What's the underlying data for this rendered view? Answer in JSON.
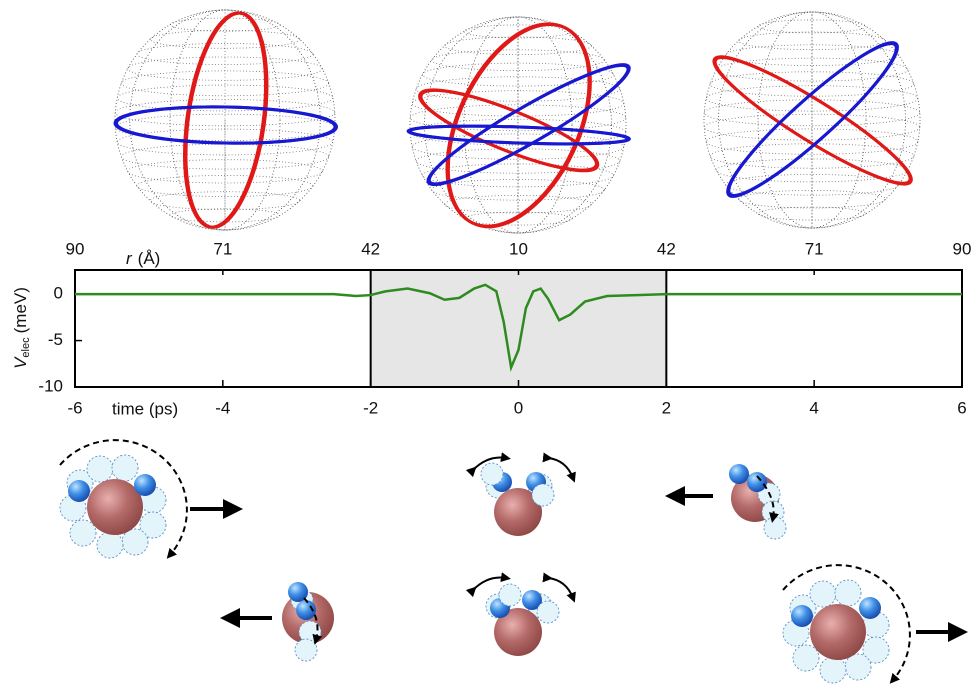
{
  "chart_data": {
    "type": "line",
    "x": [
      -6,
      -5,
      -4,
      -3,
      -2.5,
      -2.2,
      -2,
      -1.8,
      -1.5,
      -1.2,
      -1,
      -0.8,
      -0.6,
      -0.45,
      -0.3,
      -0.2,
      -0.1,
      0,
      0.1,
      0.2,
      0.3,
      0.4,
      0.55,
      0.7,
      0.9,
      1.2,
      1.6,
      2,
      3,
      4,
      5,
      6
    ],
    "values": [
      0,
      0,
      0,
      0,
      0,
      -0.2,
      -0.1,
      0.3,
      0.6,
      0.1,
      -0.6,
      -0.4,
      0.6,
      1.0,
      0.3,
      -3,
      -7.9,
      -6,
      -1.5,
      0.3,
      0.6,
      -0.5,
      -2.8,
      -2.2,
      -0.8,
      -0.2,
      -0.1,
      0,
      0,
      0,
      0,
      0
    ],
    "color": "#2e8b1f",
    "xlabel": "time (ps)",
    "ylabel": {
      "symbol": "V",
      "subscript": "elec",
      "unit": "(meV)"
    },
    "x2label": {
      "symbol": "r",
      "unit": "(Å)"
    },
    "xlim": [
      -6,
      6
    ],
    "ylim": [
      -10,
      2.6
    ],
    "xticks": [
      -6,
      -4,
      -2,
      0,
      2,
      4,
      6
    ],
    "yticks": [
      0,
      -5,
      -10
    ],
    "x2ticks": [
      {
        "value": -6,
        "label": "90"
      },
      {
        "value": -4,
        "label": "71"
      },
      {
        "value": -2,
        "label": "42"
      },
      {
        "value": 0,
        "label": "10"
      },
      {
        "value": 2,
        "label": "42"
      },
      {
        "value": 4,
        "label": "71"
      },
      {
        "value": 6,
        "label": "90"
      }
    ],
    "shaded_region": [
      -2,
      2
    ],
    "shade_color": "#e6e6e6"
  }
}
